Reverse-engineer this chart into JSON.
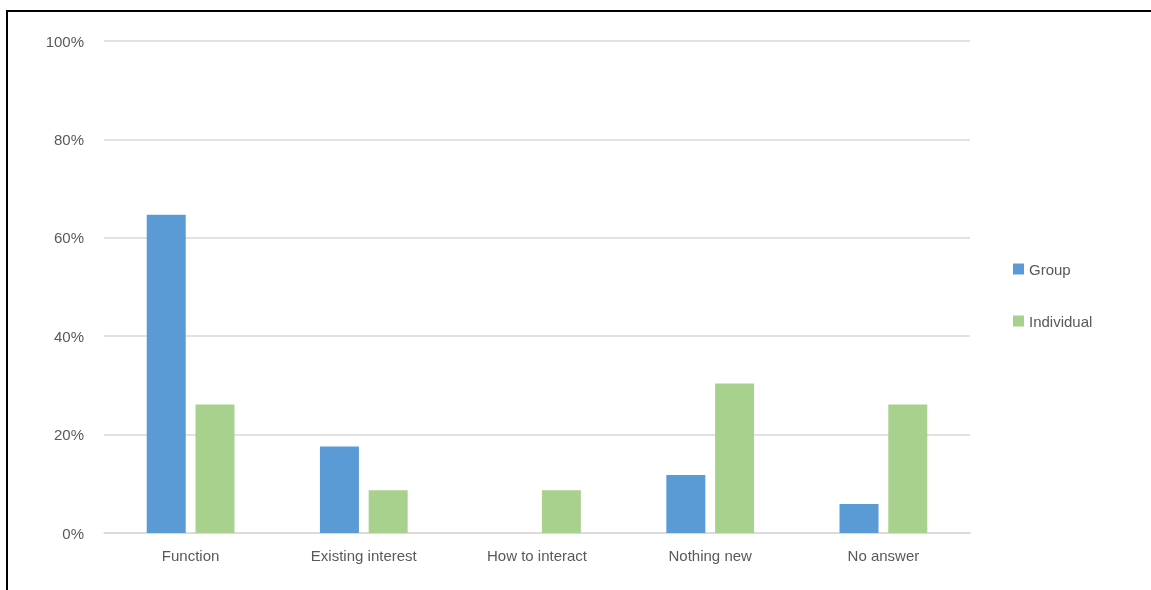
{
  "chart_data": {
    "type": "bar",
    "categories": [
      "Function",
      "Existing interest",
      "How to interact",
      "Nothing new",
      "No answer"
    ],
    "series": [
      {
        "name": "Group",
        "color": "#5b9bd5",
        "values": [
          64.7,
          17.6,
          0,
          11.8,
          5.9
        ]
      },
      {
        "name": "Individual",
        "color": "#a9d18e",
        "values": [
          26.1,
          8.7,
          8.7,
          30.4,
          26.1
        ]
      }
    ],
    "ylim": [
      0,
      100
    ],
    "yticks": [
      {
        "value": 0,
        "label": "0%"
      },
      {
        "value": 20,
        "label": "20%"
      },
      {
        "value": 40,
        "label": "40%"
      },
      {
        "value": 60,
        "label": "60%"
      },
      {
        "value": 80,
        "label": "80%"
      },
      {
        "value": 100,
        "label": "100%"
      }
    ],
    "grid": "y",
    "legend": "right"
  }
}
